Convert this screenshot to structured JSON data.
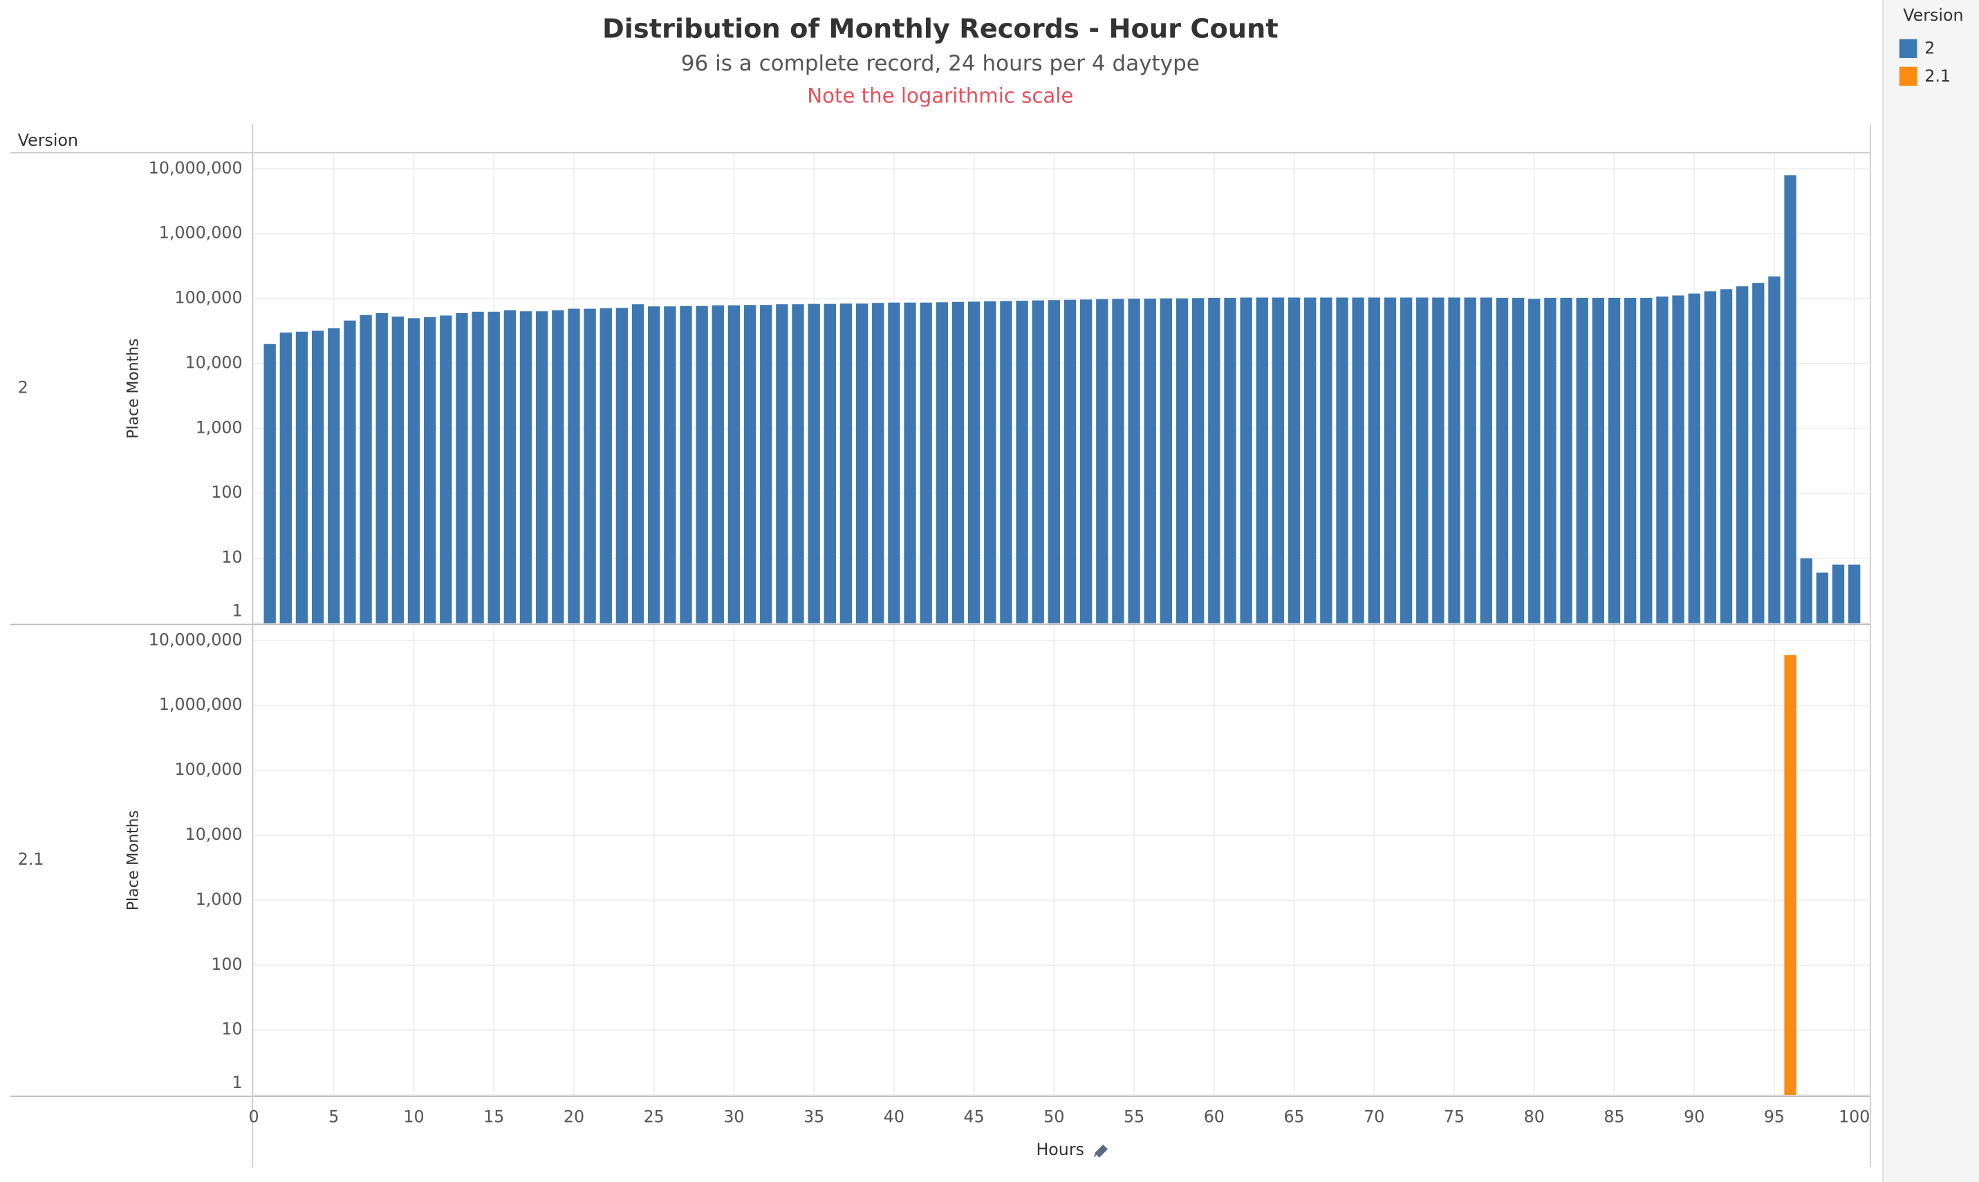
{
  "chart_data": {
    "type": "bar",
    "title": "Distribution of Monthly Records - Hour Count",
    "subtitle": "96 is a complete record, 24 hours per 4 daytype",
    "note": "Note the logarithmic scale",
    "row_header": "Version",
    "legend_title": "Version",
    "xlabel": "Hours",
    "ylabel": "Place Months",
    "log_scale": true,
    "grid": true,
    "x": [
      1,
      2,
      3,
      4,
      5,
      6,
      7,
      8,
      9,
      10,
      11,
      12,
      13,
      14,
      15,
      16,
      17,
      18,
      19,
      20,
      21,
      22,
      23,
      24,
      25,
      26,
      27,
      28,
      29,
      30,
      31,
      32,
      33,
      34,
      35,
      36,
      37,
      38,
      39,
      40,
      41,
      42,
      43,
      44,
      45,
      46,
      47,
      48,
      49,
      50,
      51,
      52,
      53,
      54,
      55,
      56,
      57,
      58,
      59,
      60,
      61,
      62,
      63,
      64,
      65,
      66,
      67,
      68,
      69,
      70,
      71,
      72,
      73,
      74,
      75,
      76,
      77,
      78,
      79,
      80,
      81,
      82,
      83,
      84,
      85,
      86,
      87,
      88,
      89,
      90,
      91,
      92,
      93,
      94,
      95,
      96,
      97,
      98,
      99,
      100
    ],
    "series": [
      {
        "name": "2",
        "color": "#3e78b2",
        "values": [
          20000,
          30000,
          31000,
          32000,
          35000,
          46000,
          56000,
          60000,
          53000,
          50000,
          52000,
          55000,
          60000,
          63000,
          63000,
          66000,
          64000,
          64000,
          66000,
          70000,
          70000,
          71000,
          72000,
          82000,
          76000,
          76000,
          77000,
          77000,
          79000,
          79000,
          80000,
          80000,
          82000,
          82000,
          83000,
          83000,
          84000,
          84000,
          86000,
          87000,
          87000,
          87000,
          88000,
          89000,
          90000,
          91000,
          92000,
          93000,
          94000,
          95000,
          96000,
          97000,
          98000,
          99000,
          100000,
          100000,
          101000,
          101000,
          102000,
          103000,
          103000,
          104000,
          104000,
          104000,
          104000,
          104000,
          104000,
          104000,
          104000,
          104000,
          104000,
          104000,
          104000,
          104000,
          104000,
          104000,
          104000,
          103000,
          103000,
          99000,
          103000,
          103000,
          103000,
          103000,
          103000,
          103000,
          103000,
          108000,
          112000,
          120000,
          130000,
          140000,
          155000,
          175000,
          220000,
          8000000,
          10,
          6,
          8,
          8
        ]
      },
      {
        "name": "2.1",
        "color": "#fc8b12",
        "values": [
          null,
          null,
          null,
          null,
          null,
          null,
          null,
          null,
          null,
          null,
          null,
          null,
          null,
          null,
          null,
          null,
          null,
          null,
          null,
          null,
          null,
          null,
          null,
          null,
          null,
          null,
          null,
          null,
          null,
          null,
          null,
          null,
          null,
          null,
          null,
          null,
          null,
          null,
          null,
          null,
          null,
          null,
          null,
          null,
          null,
          null,
          null,
          null,
          null,
          null,
          null,
          null,
          null,
          null,
          null,
          null,
          null,
          null,
          null,
          null,
          null,
          null,
          null,
          null,
          null,
          null,
          null,
          null,
          null,
          null,
          null,
          null,
          null,
          null,
          null,
          null,
          null,
          null,
          null,
          null,
          null,
          null,
          null,
          null,
          null,
          null,
          null,
          null,
          null,
          null,
          null,
          null,
          null,
          null,
          null,
          6000000,
          null,
          null,
          null,
          null
        ]
      }
    ],
    "xlim": [
      0,
      101
    ],
    "xticks": [
      0,
      5,
      10,
      15,
      20,
      25,
      30,
      35,
      40,
      45,
      50,
      55,
      60,
      65,
      70,
      75,
      80,
      85,
      90,
      95,
      100
    ],
    "ylim": [
      1,
      17000000
    ],
    "yticks": [
      1,
      10,
      100,
      {
        "value": 1000,
        "label": "1,000"
      },
      {
        "value": 10000,
        "label": "10,000"
      },
      {
        "value": 100000,
        "label": "100,000"
      },
      {
        "value": 1000000,
        "label": "1,000,000"
      },
      {
        "value": 10000000,
        "label": "10,000,000"
      }
    ]
  }
}
